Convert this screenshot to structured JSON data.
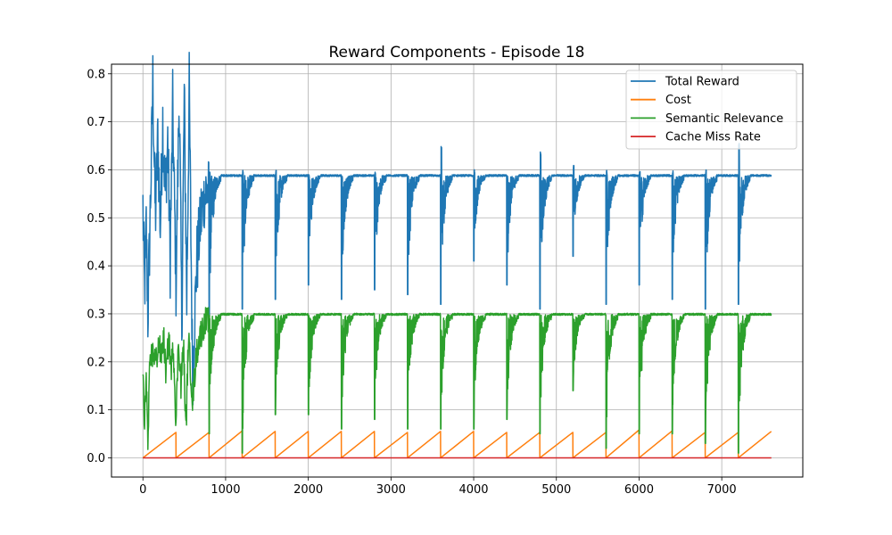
{
  "chart_data": {
    "type": "line",
    "title": "Reward Components - Episode 18",
    "xlabel": "",
    "ylabel": "",
    "xlim": [
      -380,
      7980
    ],
    "ylim": [
      -0.04,
      0.82
    ],
    "x_ticks": [
      0,
      1000,
      2000,
      3000,
      4000,
      5000,
      6000,
      7000
    ],
    "x_tick_labels": [
      "0",
      "1000",
      "2000",
      "3000",
      "4000",
      "5000",
      "6000",
      "7000"
    ],
    "y_ticks": [
      0.0,
      0.1,
      0.2,
      0.3,
      0.4,
      0.5,
      0.6,
      0.7,
      0.8
    ],
    "y_tick_labels": [
      "0.0",
      "0.1",
      "0.2",
      "0.3",
      "0.4",
      "0.5",
      "0.6",
      "0.7",
      "0.8"
    ],
    "grid": true,
    "legend_position": "top-right",
    "x_range": [
      0,
      7600
    ],
    "reset_period": 400,
    "reset_points": [
      800,
      1200,
      1600,
      2000,
      2400,
      2800,
      3200,
      3600,
      4000,
      4400,
      4800,
      5200,
      5600,
      6000,
      6400,
      6800,
      7200
    ],
    "series": [
      {
        "name": "Total Reward",
        "color": "#1f77b4",
        "early_samples": [
          [
            0,
            0.52
          ],
          [
            20,
            0.35
          ],
          [
            40,
            0.48
          ],
          [
            60,
            0.3
          ],
          [
            80,
            0.45
          ],
          [
            100,
            0.6
          ],
          [
            120,
            0.78
          ],
          [
            150,
            0.5
          ],
          [
            180,
            0.67
          ],
          [
            210,
            0.48
          ],
          [
            240,
            0.7
          ],
          [
            270,
            0.55
          ],
          [
            300,
            0.66
          ],
          [
            330,
            0.42
          ],
          [
            360,
            0.72
          ],
          [
            400,
            0.37
          ],
          [
            440,
            0.76
          ],
          [
            470,
            0.28
          ],
          [
            500,
            0.75
          ],
          [
            530,
            0.33
          ],
          [
            560,
            0.76
          ],
          [
            600,
            0.18
          ],
          [
            650,
            0.4
          ],
          [
            700,
            0.5
          ],
          [
            750,
            0.55
          ],
          [
            800,
            0.56
          ]
        ],
        "steady_value": 0.588,
        "dip_minima": [
          0.29,
          0.31,
          0.33,
          0.36,
          0.33,
          0.35,
          0.34,
          0.32,
          0.41,
          0.36,
          0.31,
          0.42,
          0.32,
          0.36,
          0.33,
          0.31,
          0.32
        ],
        "spike_maxima": [
          0.598,
          0.6,
          0.6,
          0.59,
          0.59,
          0.6,
          0.59,
          0.65,
          0.6,
          0.59,
          0.64,
          0.61,
          0.6,
          0.6,
          0.6,
          0.6,
          0.66
        ],
        "final_value": 0.587
      },
      {
        "name": "Cost",
        "color": "#ff7f0e",
        "segments": [
          {
            "x": [
              0,
              400
            ],
            "y": [
              0.0,
              0.053
            ]
          },
          {
            "x": [
              400,
              800
            ],
            "y": [
              0.0,
              0.053
            ]
          },
          {
            "x": [
              800,
              1200
            ],
            "y": [
              0.0,
              0.056
            ]
          },
          {
            "x": [
              1200,
              1600
            ],
            "y": [
              0.0,
              0.055
            ]
          },
          {
            "x": [
              1600,
              2000
            ],
            "y": [
              0.0,
              0.055
            ]
          },
          {
            "x": [
              2000,
              2400
            ],
            "y": [
              0.0,
              0.055
            ]
          },
          {
            "x": [
              2400,
              2800
            ],
            "y": [
              0.0,
              0.055
            ]
          },
          {
            "x": [
              2800,
              3200
            ],
            "y": [
              0.0,
              0.053
            ]
          },
          {
            "x": [
              3200,
              3600
            ],
            "y": [
              0.0,
              0.055
            ]
          },
          {
            "x": [
              3600,
              4000
            ],
            "y": [
              0.0,
              0.055
            ]
          },
          {
            "x": [
              4000,
              4400
            ],
            "y": [
              0.0,
              0.053
            ]
          },
          {
            "x": [
              4400,
              4800
            ],
            "y": [
              0.0,
              0.053
            ]
          },
          {
            "x": [
              4800,
              5200
            ],
            "y": [
              0.0,
              0.053
            ]
          },
          {
            "x": [
              5200,
              5600
            ],
            "y": [
              0.0,
              0.053
            ]
          },
          {
            "x": [
              5600,
              6000
            ],
            "y": [
              0.0,
              0.058
            ]
          },
          {
            "x": [
              6000,
              6400
            ],
            "y": [
              0.0,
              0.056
            ]
          },
          {
            "x": [
              6400,
              6800
            ],
            "y": [
              0.0,
              0.053
            ]
          },
          {
            "x": [
              6800,
              7200
            ],
            "y": [
              0.0,
              0.053
            ]
          },
          {
            "x": [
              7200,
              7600
            ],
            "y": [
              0.0,
              0.055
            ]
          }
        ]
      },
      {
        "name": "Semantic Relevance",
        "color": "#2ca02c",
        "early_samples": [
          [
            0,
            0.18
          ],
          [
            20,
            0.05
          ],
          [
            40,
            0.19
          ],
          [
            60,
            0.02
          ],
          [
            80,
            0.17
          ],
          [
            100,
            0.21
          ],
          [
            130,
            0.22
          ],
          [
            160,
            0.2
          ],
          [
            190,
            0.24
          ],
          [
            220,
            0.21
          ],
          [
            250,
            0.25
          ],
          [
            280,
            0.17
          ],
          [
            310,
            0.25
          ],
          [
            340,
            0.19
          ],
          [
            370,
            0.23
          ],
          [
            400,
            0.07
          ],
          [
            430,
            0.25
          ],
          [
            460,
            0.15
          ],
          [
            490,
            0.24
          ],
          [
            520,
            0.05
          ],
          [
            550,
            0.25
          ],
          [
            600,
            0.12
          ],
          [
            650,
            0.22
          ],
          [
            700,
            0.26
          ],
          [
            750,
            0.28
          ],
          [
            800,
            0.29
          ]
        ],
        "steady_value": 0.299,
        "dip_minima": [
          0.05,
          0.01,
          0.09,
          0.09,
          0.06,
          0.08,
          0.06,
          0.06,
          0.06,
          0.08,
          0.05,
          0.14,
          0.02,
          0.05,
          0.05,
          0.03,
          0.01
        ],
        "final_value": 0.299
      },
      {
        "name": "Cache Miss Rate",
        "color": "#d62728",
        "x": [
          0,
          7600
        ],
        "y": [
          0.0,
          0.0
        ]
      }
    ]
  }
}
